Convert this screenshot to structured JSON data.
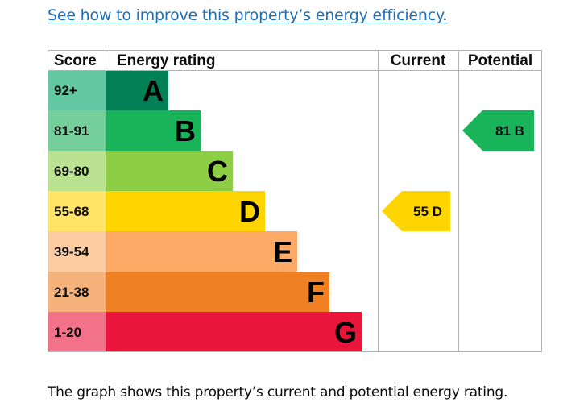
{
  "link": {
    "text": "See how to improve this property’s energy efficiency",
    "trailing": "."
  },
  "caption": "The graph shows this property’s current and potential energy rating.",
  "chart_data": {
    "type": "bar",
    "headers": {
      "score": "Score",
      "rating": "Energy rating",
      "current": "Current",
      "potential": "Potential"
    },
    "bands": [
      {
        "letter": "A",
        "range": "92+",
        "min": 92,
        "max": 100,
        "color": "#008054",
        "score_bg": "#64c7a4"
      },
      {
        "letter": "B",
        "range": "81-91",
        "min": 81,
        "max": 91,
        "color": "#19b459",
        "score_bg": "#75cf9b"
      },
      {
        "letter": "C",
        "range": "69-80",
        "min": 69,
        "max": 80,
        "color": "#8dce46",
        "score_bg": "#bbe290"
      },
      {
        "letter": "D",
        "range": "55-68",
        "min": 55,
        "max": 68,
        "color": "#ffd500",
        "score_bg": "#ffe466"
      },
      {
        "letter": "E",
        "range": "39-54",
        "min": 39,
        "max": 54,
        "color": "#fcaa65",
        "score_bg": "#fdcca3"
      },
      {
        "letter": "F",
        "range": "21-38",
        "min": 21,
        "max": 38,
        "color": "#ef8023",
        "score_bg": "#f5b37b"
      },
      {
        "letter": "G",
        "range": "1-20",
        "min": 1,
        "max": 20,
        "color": "#e9153b",
        "score_bg": "#f27389"
      }
    ],
    "current": {
      "value": 55,
      "band": "D",
      "label": "55 D",
      "color": "#ffd500",
      "text_color": "#0b0c0c"
    },
    "potential": {
      "value": 81,
      "band": "B",
      "label": "81 B",
      "color": "#19b459",
      "text_color": "#0b0c0c"
    }
  }
}
